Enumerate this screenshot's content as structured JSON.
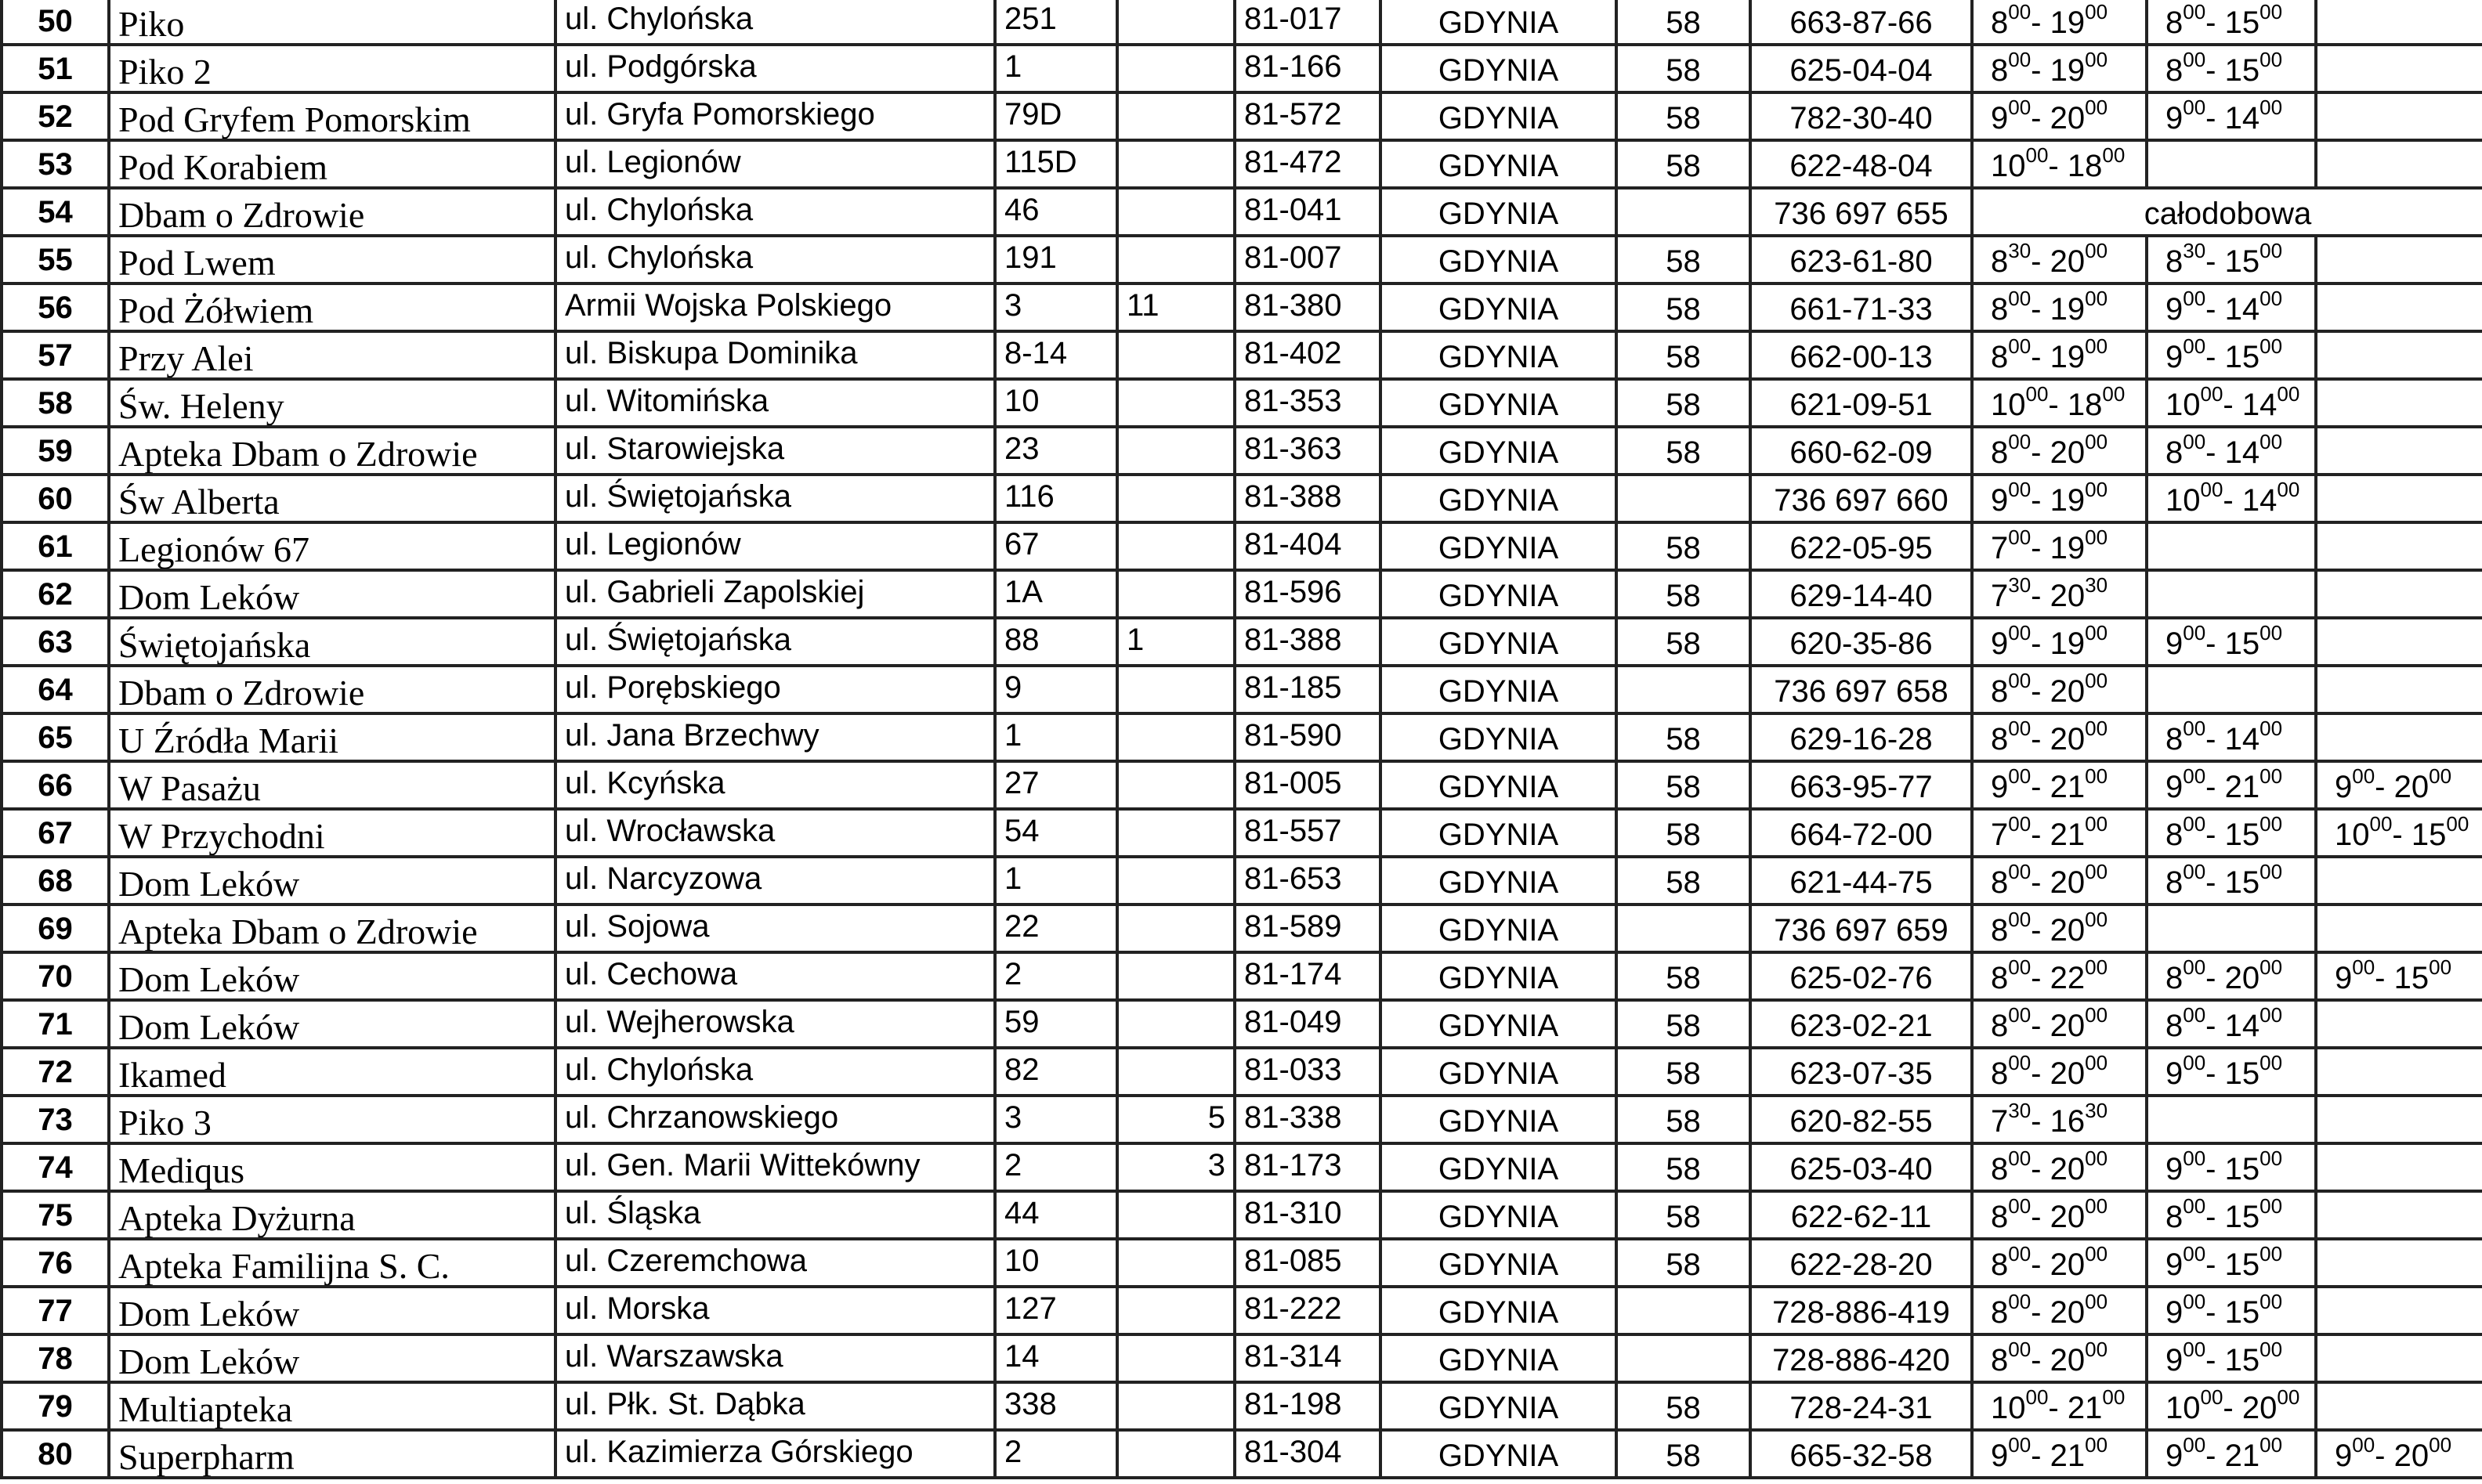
{
  "rows": [
    {
      "num": "50",
      "name": "Piko",
      "street": "ul. Chylońska",
      "no": "251",
      "apt": "",
      "postal": "81-017",
      "city": "GDYNIA",
      "area": "58",
      "phone": "663-87-66",
      "hours": [
        [
          [
            "8",
            "00"
          ],
          [
            "19",
            "00"
          ]
        ],
        [
          [
            "8",
            "00"
          ],
          [
            "15",
            "00"
          ]
        ],
        null
      ]
    },
    {
      "num": "51",
      "name": "Piko 2",
      "street": "ul. Podgórska",
      "no": "1",
      "apt": "",
      "postal": "81-166",
      "city": "GDYNIA",
      "area": "58",
      "phone": "625-04-04",
      "hours": [
        [
          [
            "8",
            "00"
          ],
          [
            "19",
            "00"
          ]
        ],
        [
          [
            "8",
            "00"
          ],
          [
            "15",
            "00"
          ]
        ],
        null
      ]
    },
    {
      "num": "52",
      "name": "Pod Gryfem Pomorskim",
      "street": "ul. Gryfa Pomorskiego",
      "no": "79D",
      "apt": "",
      "postal": "81-572",
      "city": "GDYNIA",
      "area": "58",
      "phone": "782-30-40",
      "hours": [
        [
          [
            "9",
            "00"
          ],
          [
            "20",
            "00"
          ]
        ],
        [
          [
            "9",
            "00"
          ],
          [
            "14",
            "00"
          ]
        ],
        null
      ]
    },
    {
      "num": "53",
      "name": "Pod Korabiem",
      "street": "ul. Legionów",
      "no": "115D",
      "apt": "",
      "postal": "81-472",
      "city": "GDYNIA",
      "area": "58",
      "phone": "622-48-04",
      "hours": [
        [
          [
            "10",
            "00"
          ],
          [
            "18",
            "00"
          ]
        ],
        null,
        null
      ]
    },
    {
      "num": "54",
      "name": "Dbam o Zdrowie",
      "street": "ul. Chylońska",
      "no": "46",
      "apt": "",
      "postal": "81-041",
      "city": "GDYNIA",
      "area": "",
      "phone": "736 697 655",
      "allday": "całodobowa"
    },
    {
      "num": "55",
      "name": "Pod Lwem",
      "street": "ul. Chylońska",
      "no": "191",
      "apt": "",
      "postal": "81-007",
      "city": "GDYNIA",
      "area": "58",
      "phone": "623-61-80",
      "hours": [
        [
          [
            "8",
            "30"
          ],
          [
            "20",
            "00"
          ]
        ],
        [
          [
            "8",
            "30"
          ],
          [
            "15",
            "00"
          ]
        ],
        null
      ]
    },
    {
      "num": "56",
      "name": "Pod Żółwiem",
      "street": "Armii Wojska Polskiego",
      "no": "3",
      "apt": "11",
      "postal": "81-380",
      "city": "GDYNIA",
      "area": "58",
      "phone": "661-71-33",
      "hours": [
        [
          [
            "8",
            "00"
          ],
          [
            "19",
            "00"
          ]
        ],
        [
          [
            "9",
            "00"
          ],
          [
            "14",
            "00"
          ]
        ],
        null
      ]
    },
    {
      "num": "57",
      "name": "Przy Alei",
      "street": "ul. Biskupa Dominika",
      "no": "8-14",
      "apt": "",
      "postal": "81-402",
      "city": "GDYNIA",
      "area": "58",
      "phone": "662-00-13",
      "hours": [
        [
          [
            "8",
            "00"
          ],
          [
            "19",
            "00"
          ]
        ],
        [
          [
            "9",
            "00"
          ],
          [
            "15",
            "00"
          ]
        ],
        null
      ]
    },
    {
      "num": "58",
      "name": "Św. Heleny",
      "street": "ul. Witomińska",
      "no": "10",
      "apt": "",
      "postal": "81-353",
      "city": "GDYNIA",
      "area": "58",
      "phone": "621-09-51",
      "hours": [
        [
          [
            "10",
            "00"
          ],
          [
            "18",
            "00"
          ]
        ],
        [
          [
            "10",
            "00"
          ],
          [
            "14",
            "00"
          ]
        ],
        null
      ]
    },
    {
      "num": "59",
      "name": "Apteka Dbam o Zdrowie",
      "street": "ul. Starowiejska",
      "no": "23",
      "apt": "",
      "postal": "81-363",
      "city": "GDYNIA",
      "area": "58",
      "phone": "660-62-09",
      "hours": [
        [
          [
            "8",
            "00"
          ],
          [
            "20",
            "00"
          ]
        ],
        [
          [
            "8",
            "00"
          ],
          [
            "14",
            "00"
          ]
        ],
        null
      ]
    },
    {
      "num": "60",
      "name": "Św  Alberta",
      "street": "ul. Świętojańska",
      "no": "116",
      "apt": "",
      "postal": "81-388",
      "city": "GDYNIA",
      "area": "",
      "phone": "736 697 660",
      "hours": [
        [
          [
            "9",
            "00"
          ],
          [
            "19",
            "00"
          ]
        ],
        [
          [
            "10",
            "00"
          ],
          [
            "14",
            "00"
          ]
        ],
        null
      ]
    },
    {
      "num": "61",
      "name": "Legionów 67",
      "street": "ul. Legionów",
      "no": "67",
      "apt": "",
      "postal": "81-404",
      "city": "GDYNIA",
      "area": "58",
      "phone": "622-05-95",
      "hours": [
        [
          [
            "7",
            "00"
          ],
          [
            "19",
            "00"
          ]
        ],
        null,
        null
      ]
    },
    {
      "num": "62",
      "name": "Dom Leków",
      "street": "ul. Gabrieli  Zapolskiej",
      "no": "1A",
      "apt": "",
      "postal": "81-596",
      "city": "GDYNIA",
      "area": "58",
      "phone": "629-14-40",
      "hours": [
        [
          [
            "7",
            "30"
          ],
          [
            "20",
            "30"
          ]
        ],
        null,
        null
      ]
    },
    {
      "num": "63",
      "name": "Świętojańska",
      "street": "ul. Świętojańska",
      "no": "88",
      "apt": "1",
      "postal": "81-388",
      "city": "GDYNIA",
      "area": "58",
      "phone": "620-35-86",
      "hours": [
        [
          [
            "9",
            "00"
          ],
          [
            "19",
            "00"
          ]
        ],
        [
          [
            "9",
            "00"
          ],
          [
            "15",
            "00"
          ]
        ],
        null
      ]
    },
    {
      "num": "64",
      "name": "Dbam o Zdrowie",
      "street": "ul. Porębskiego",
      "no": "9",
      "apt": "",
      "postal": "81-185",
      "city": "GDYNIA",
      "area": "",
      "phone": "736 697 658",
      "hours": [
        [
          [
            "8",
            "00"
          ],
          [
            "20",
            "00"
          ]
        ],
        null,
        null
      ]
    },
    {
      "num": "65",
      "name": "U Źródła  Marii",
      "street": "ul. Jana Brzechwy",
      "no": "1",
      "apt": "",
      "postal": "81-590",
      "city": "GDYNIA",
      "area": "58",
      "phone": "629-16-28",
      "hours": [
        [
          [
            "8",
            "00"
          ],
          [
            "20",
            "00"
          ]
        ],
        [
          [
            "8",
            "00"
          ],
          [
            "14",
            "00"
          ]
        ],
        null
      ]
    },
    {
      "num": "66",
      "name": "W Pasażu",
      "street": "ul. Kcyńska",
      "no": "27",
      "apt": "",
      "postal": "81-005",
      "city": "GDYNIA",
      "area": "58",
      "phone": "663-95-77",
      "hours": [
        [
          [
            "9",
            "00"
          ],
          [
            "21",
            "00"
          ]
        ],
        [
          [
            "9",
            "00"
          ],
          [
            "21",
            "00"
          ]
        ],
        [
          [
            "9",
            "00"
          ],
          [
            "20",
            "00"
          ]
        ]
      ]
    },
    {
      "num": "67",
      "name": "W Przychodni",
      "street": "ul. Wrocławska",
      "no": "54",
      "apt": "",
      "postal": "81-557",
      "city": "GDYNIA",
      "area": "58",
      "phone": "664-72-00",
      "hours": [
        [
          [
            "7",
            "00"
          ],
          [
            "21",
            "00"
          ]
        ],
        [
          [
            "8",
            "00"
          ],
          [
            "15",
            "00"
          ]
        ],
        [
          [
            "10",
            "00"
          ],
          [
            "15",
            "00"
          ]
        ]
      ]
    },
    {
      "num": "68",
      "name": "Dom Leków",
      "street": "ul. Narcyzowa",
      "no": "1",
      "apt": "",
      "postal": "81-653",
      "city": "GDYNIA",
      "area": "58",
      "phone": "621-44-75",
      "hours": [
        [
          [
            "8",
            "00"
          ],
          [
            "20",
            "00"
          ]
        ],
        [
          [
            "8",
            "00"
          ],
          [
            "15",
            "00"
          ]
        ],
        null
      ]
    },
    {
      "num": "69",
      "name": "Apteka Dbam o Zdrowie",
      "street": "ul. Sojowa",
      "no": "22",
      "apt": "",
      "postal": "81-589",
      "city": "GDYNIA",
      "area": "",
      "phone": "736 697 659",
      "hours": [
        [
          [
            "8",
            "00"
          ],
          [
            "20",
            "00"
          ]
        ],
        null,
        null
      ]
    },
    {
      "num": "70",
      "name": "Dom Leków",
      "street": "ul. Cechowa",
      "no": "2",
      "apt": "",
      "postal": "81-174",
      "city": "GDYNIA",
      "area": "58",
      "phone": "625-02-76",
      "hours": [
        [
          [
            "8",
            "00"
          ],
          [
            "22",
            "00"
          ]
        ],
        [
          [
            "8",
            "00"
          ],
          [
            "20",
            "00"
          ]
        ],
        [
          [
            "9",
            "00"
          ],
          [
            "15",
            "00"
          ]
        ]
      ]
    },
    {
      "num": "71",
      "name": "Dom Leków",
      "street": "ul. Wejherowska",
      "no": "59",
      "apt": "",
      "postal": "81-049",
      "city": "GDYNIA",
      "area": "58",
      "phone": "623-02-21",
      "hours": [
        [
          [
            "8",
            "00"
          ],
          [
            "20",
            "00"
          ]
        ],
        [
          [
            "8",
            "00"
          ],
          [
            "14",
            "00"
          ]
        ],
        null
      ]
    },
    {
      "num": "72",
      "name": "Ikamed",
      "street": "ul. Chylońska",
      "no": "82",
      "apt": "",
      "postal": "81-033",
      "city": "GDYNIA",
      "area": "58",
      "phone": "623-07-35",
      "hours": [
        [
          [
            "8",
            "00"
          ],
          [
            "20",
            "00"
          ]
        ],
        [
          [
            "9",
            "00"
          ],
          [
            "15",
            "00"
          ]
        ],
        null
      ]
    },
    {
      "num": "73",
      "name": "Piko 3",
      "street": "ul. Chrzanowskiego",
      "no": "3",
      "apt": "5",
      "apt_align": "right",
      "postal": "81-338",
      "city": "GDYNIA",
      "area": "58",
      "phone": "620-82-55",
      "hours": [
        [
          [
            "7",
            "30"
          ],
          [
            "16",
            "30"
          ]
        ],
        null,
        null
      ]
    },
    {
      "num": "74",
      "name": "Mediqus",
      "street": "ul. Gen. Marii Wittekówny",
      "no": "2",
      "apt": "3",
      "apt_align": "right",
      "postal": "81-173",
      "city": "GDYNIA",
      "area": "58",
      "phone": "625-03-40",
      "hours": [
        [
          [
            "8",
            "00"
          ],
          [
            "20",
            "00"
          ]
        ],
        [
          [
            "9",
            "00"
          ],
          [
            "15",
            "00"
          ]
        ],
        null
      ]
    },
    {
      "num": "75",
      "name": "Apteka Dyżurna",
      "street": "ul. Śląska",
      "no": "44",
      "apt": "",
      "postal": "81-310",
      "city": "GDYNIA",
      "area": "58",
      "phone": "622-62-11",
      "hours": [
        [
          [
            "8",
            "00"
          ],
          [
            "20",
            "00"
          ]
        ],
        [
          [
            "8",
            "00"
          ],
          [
            "15",
            "00"
          ]
        ],
        null
      ]
    },
    {
      "num": "76",
      "name": "Apteka Familijna S. C.",
      "street": "ul. Czeremchowa",
      "no": "10",
      "apt": "",
      "postal": "81-085",
      "city": "GDYNIA",
      "area": "58",
      "phone": "622-28-20",
      "hours": [
        [
          [
            "8",
            "00"
          ],
          [
            "20",
            "00"
          ]
        ],
        [
          [
            "9",
            "00"
          ],
          [
            "15",
            "00"
          ]
        ],
        null
      ]
    },
    {
      "num": "77",
      "name": "Dom Leków",
      "street": "ul. Morska",
      "no": "127",
      "apt": "",
      "postal": "81-222",
      "city": "GDYNIA",
      "area": "",
      "phone": "728-886-419",
      "hours": [
        [
          [
            "8",
            "00"
          ],
          [
            "20",
            "00"
          ]
        ],
        [
          [
            "9",
            "00"
          ],
          [
            "15",
            "00"
          ]
        ],
        null
      ]
    },
    {
      "num": "78",
      "name": "Dom Leków",
      "street": "ul. Warszawska",
      "no": "14",
      "apt": "",
      "postal": "81-314",
      "city": "GDYNIA",
      "area": "",
      "phone": "728-886-420",
      "hours": [
        [
          [
            "8",
            "00"
          ],
          [
            "20",
            "00"
          ]
        ],
        [
          [
            "9",
            "00"
          ],
          [
            "15",
            "00"
          ]
        ],
        null
      ]
    },
    {
      "num": "79",
      "name": "Multiapteka",
      "street": "ul. Płk. St. Dąbka",
      "no": "338",
      "apt": "",
      "postal": "81-198",
      "city": "GDYNIA",
      "area": "58",
      "phone": "728-24-31",
      "hours": [
        [
          [
            "10",
            "00"
          ],
          [
            "21",
            "00"
          ]
        ],
        [
          [
            "10",
            "00"
          ],
          [
            "20",
            "00"
          ]
        ],
        null
      ]
    },
    {
      "num": "80",
      "name": "Superpharm",
      "street": "ul. Kazimierza Górskiego",
      "no": "2",
      "apt": "",
      "postal": "81-304",
      "city": "GDYNIA",
      "area": "58",
      "phone": "665-32-58",
      "hours": [
        [
          [
            "9",
            "00"
          ],
          [
            "21",
            "00"
          ]
        ],
        [
          [
            "9",
            "00"
          ],
          [
            "21",
            "00"
          ]
        ],
        [
          [
            "9",
            "00"
          ],
          [
            "20",
            "00"
          ]
        ]
      ]
    }
  ]
}
